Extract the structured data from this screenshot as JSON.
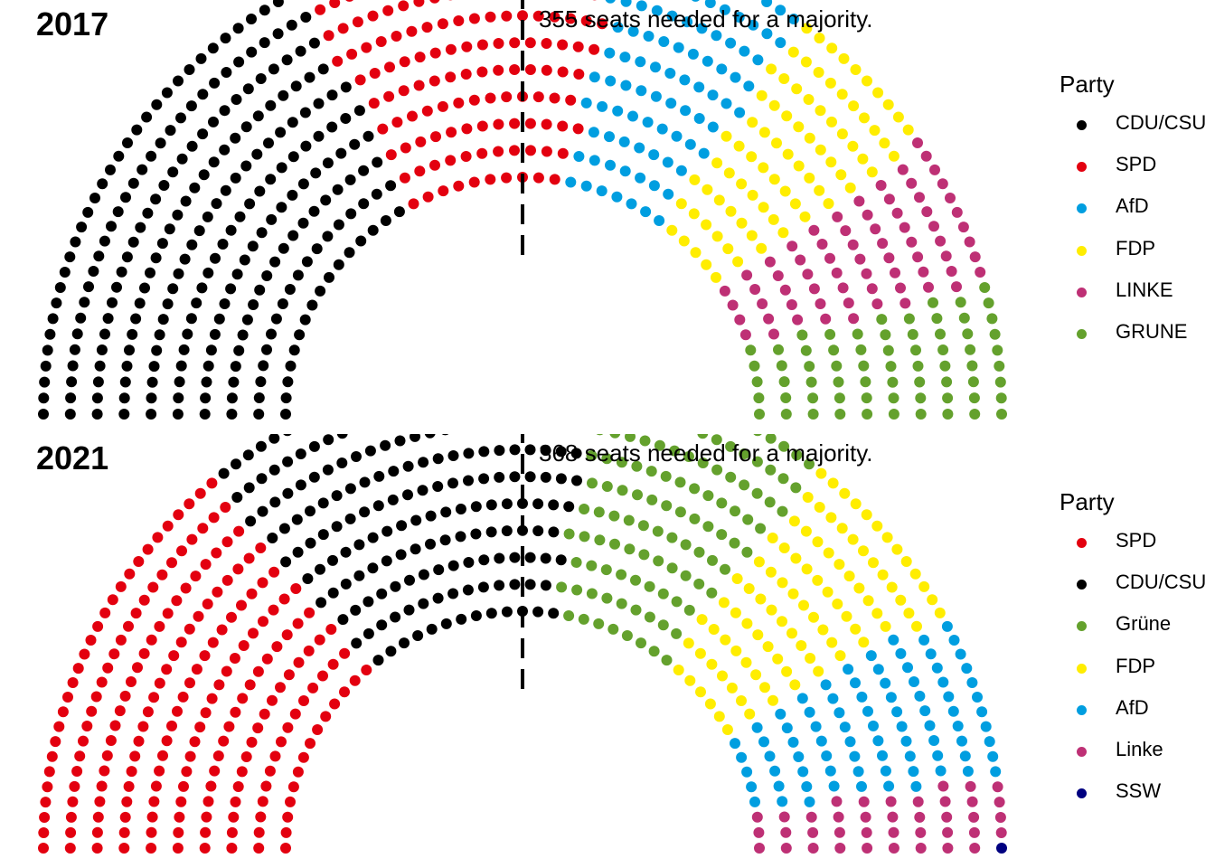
{
  "chart_data": [
    {
      "type": "parliament",
      "year_label": "2017",
      "majority_note": "355 seats needed for a majority.",
      "total_seats": 709,
      "majority": 355,
      "legend_title": "Party",
      "parties": [
        {
          "name": "CDU/CSU",
          "seats": 246,
          "color": "#000000"
        },
        {
          "name": "SPD",
          "seats": 153,
          "color": "#E3000F"
        },
        {
          "name": "AfD",
          "seats": 94,
          "color": "#009EE0"
        },
        {
          "name": "FDP",
          "seats": 80,
          "color": "#FFED00"
        },
        {
          "name": "LINKE",
          "seats": 69,
          "color": "#BE3075"
        },
        {
          "name": "GRUNE",
          "seats": 67,
          "color": "#64A12D"
        }
      ]
    },
    {
      "type": "parliament",
      "year_label": "2021",
      "majority_note": "368 seats needed for a majority.",
      "total_seats": 736,
      "majority": 368,
      "legend_title": "Party",
      "parties": [
        {
          "name": "SPD",
          "seats": 206,
          "color": "#E3000F"
        },
        {
          "name": "CDU/CSU",
          "seats": 197,
          "color": "#000000"
        },
        {
          "name": "Grüne",
          "seats": 118,
          "color": "#64A12D"
        },
        {
          "name": "FDP",
          "seats": 92,
          "color": "#FFED00"
        },
        {
          "name": "AfD",
          "seats": 83,
          "color": "#009EE0"
        },
        {
          "name": "Linke",
          "seats": 39,
          "color": "#BE3075"
        },
        {
          "name": "SSW",
          "seats": 1,
          "color": "#000080"
        }
      ]
    }
  ]
}
